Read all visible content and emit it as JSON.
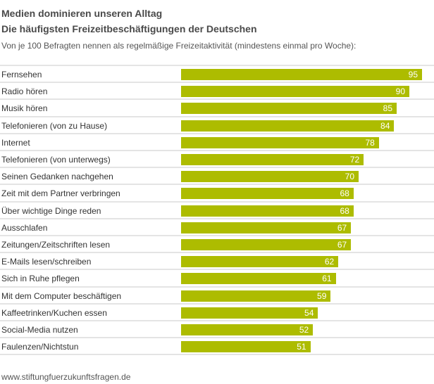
{
  "header": {
    "title": "Medien dominieren unseren Alltag",
    "title2": "Die häufigsten Freizeitbeschäftigungen der Deutschen",
    "subtitle": "Von je 100 Befragten nennen als regelmäßige Freizeitaktivität (mindestens einmal pro Woche):"
  },
  "footer": "www.stiftungfuerzukunftsfragen.de",
  "colors": {
    "bar": "#adbc00",
    "grid": "#e4e4e4"
  },
  "chart_data": {
    "type": "bar",
    "orientation": "horizontal",
    "categories": [
      "Fernsehen",
      "Radio hören",
      "Musik hören",
      "Telefonieren (von zu Hause)",
      "Internet",
      "Telefonieren (von unterwegs)",
      "Seinen Gedanken nachgehen",
      "Zeit mit dem Partner verbringen",
      "Über wichtige Dinge reden",
      "Ausschlafen",
      "Zeitungen/Zeitschriften lesen",
      "E-Mails lesen/schreiben",
      "Sich in Ruhe pflegen",
      "Mit dem Computer beschäftigen",
      "Kaffeetrinken/Kuchen essen",
      "Social-Media nutzen",
      "Faulenzen/Nichtstun"
    ],
    "values": [
      95,
      90,
      85,
      84,
      78,
      72,
      70,
      68,
      68,
      67,
      67,
      62,
      61,
      59,
      54,
      52,
      51
    ],
    "xlim": [
      0,
      100
    ]
  }
}
